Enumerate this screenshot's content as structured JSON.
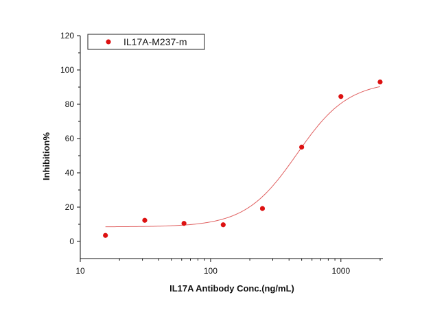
{
  "chart_data": {
    "type": "scatter",
    "title": "",
    "xlabel": "IL17A Antibody Conc.(ng/mL)",
    "ylabel": "Inhibition%",
    "xscale": "log",
    "xlim": [
      10,
      2100
    ],
    "ylim": [
      -10,
      120
    ],
    "x_ticks": [
      10,
      100,
      1000
    ],
    "x_tick_labels": [
      "10",
      "100",
      "1000"
    ],
    "y_ticks": [
      0,
      20,
      40,
      60,
      80,
      100,
      120
    ],
    "y_tick_labels": [
      "0",
      "20",
      "40",
      "60",
      "80",
      "100",
      "120"
    ],
    "grid": false,
    "legend_position": "top-left",
    "series": [
      {
        "name": "IL17A-M237-m",
        "color": "#dd1111",
        "x": [
          15.6,
          31.25,
          62.5,
          125,
          250,
          500,
          1000,
          2000
        ],
        "y": [
          3.5,
          12.3,
          10.5,
          9.7,
          19.2,
          55,
          84.5,
          93
        ]
      }
    ],
    "fit_curve": {
      "color": "#e06060",
      "bottom": 8.5,
      "top": 93.5,
      "ec50": 460,
      "hill": 2.2
    }
  }
}
